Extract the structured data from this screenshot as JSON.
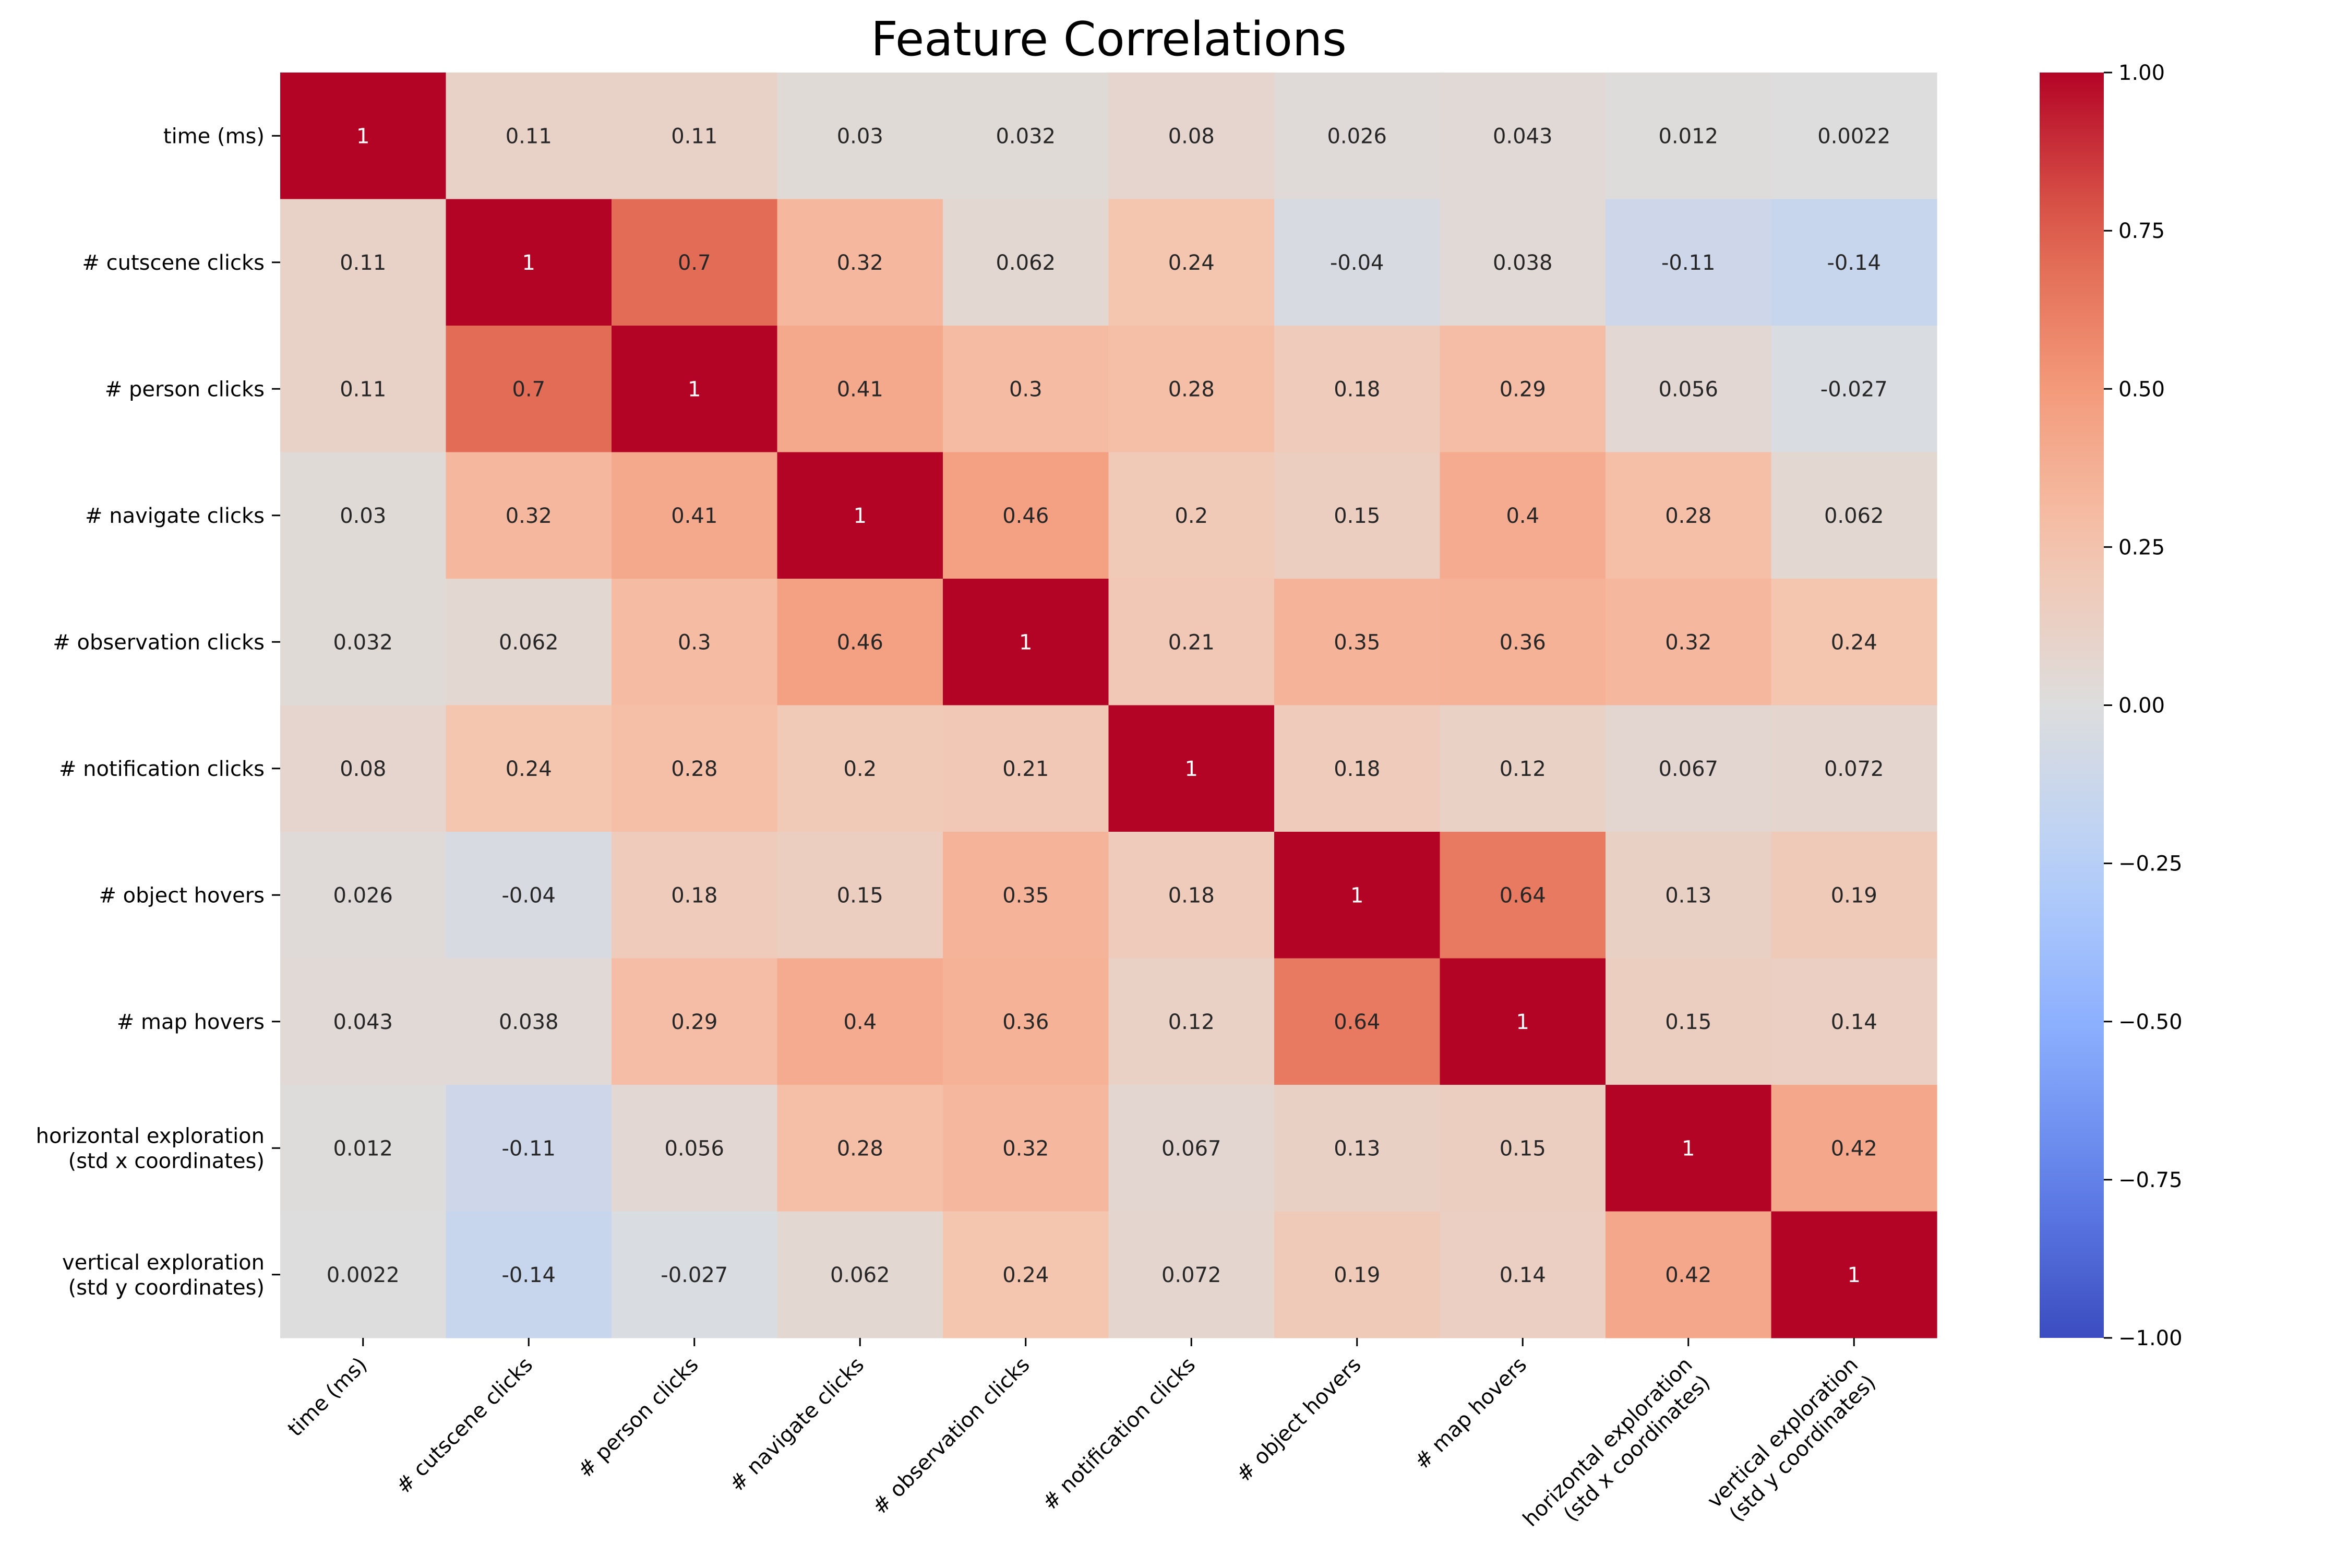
{
  "chart_data": {
    "type": "heatmap",
    "title": "Feature Correlations",
    "row_labels": [
      [
        "time (ms)"
      ],
      [
        "# cutscene clicks"
      ],
      [
        "# person clicks"
      ],
      [
        "# navigate clicks"
      ],
      [
        "# observation clicks"
      ],
      [
        "# notification clicks"
      ],
      [
        "# object hovers"
      ],
      [
        "# map hovers"
      ],
      [
        "horizontal exploration",
        "(std x coordinates)"
      ],
      [
        "vertical exploration",
        "(std y coordinates)"
      ]
    ],
    "col_labels": [
      [
        "time (ms)"
      ],
      [
        "# cutscene clicks"
      ],
      [
        "# person clicks"
      ],
      [
        "# navigate clicks"
      ],
      [
        "# observation clicks"
      ],
      [
        "# notification clicks"
      ],
      [
        "# object hovers"
      ],
      [
        "# map hovers"
      ],
      [
        "horizontal exploration",
        "(std x coordinates)"
      ],
      [
        "vertical exploration",
        "(std y coordinates)"
      ]
    ],
    "values": [
      [
        1,
        0.11,
        0.11,
        0.03,
        0.032,
        0.08,
        0.026,
        0.043,
        0.012,
        0.0022
      ],
      [
        0.11,
        1,
        0.7,
        0.32,
        0.062,
        0.24,
        -0.04,
        0.038,
        -0.11,
        -0.14
      ],
      [
        0.11,
        0.7,
        1,
        0.41,
        0.3,
        0.28,
        0.18,
        0.29,
        0.056,
        -0.027
      ],
      [
        0.03,
        0.32,
        0.41,
        1,
        0.46,
        0.2,
        0.15,
        0.4,
        0.28,
        0.062
      ],
      [
        0.032,
        0.062,
        0.3,
        0.46,
        1,
        0.21,
        0.35,
        0.36,
        0.32,
        0.24
      ],
      [
        0.08,
        0.24,
        0.28,
        0.2,
        0.21,
        1,
        0.18,
        0.12,
        0.067,
        0.072
      ],
      [
        0.026,
        -0.04,
        0.18,
        0.15,
        0.35,
        0.18,
        1,
        0.64,
        0.13,
        0.19
      ],
      [
        0.043,
        0.038,
        0.29,
        0.4,
        0.36,
        0.12,
        0.64,
        1,
        0.15,
        0.14
      ],
      [
        0.012,
        -0.11,
        0.056,
        0.28,
        0.32,
        0.067,
        0.13,
        0.15,
        1,
        0.42
      ],
      [
        0.0022,
        -0.14,
        -0.027,
        0.062,
        0.24,
        0.072,
        0.19,
        0.14,
        0.42,
        1
      ]
    ],
    "colormap": "coolwarm",
    "vmin": -1,
    "vmax": 1,
    "colorbar_ticks": [
      "1.00",
      "0.75",
      "0.50",
      "0.25",
      "0.00",
      "−0.25",
      "−0.50",
      "−0.75",
      "−1.00"
    ],
    "colorbar_tick_values": [
      1,
      0.75,
      0.5,
      0.25,
      0,
      -0.25,
      -0.5,
      -0.75,
      -1
    ],
    "colors": {
      "cold_end": "#3b4cc0",
      "neutral": "#dddddd",
      "hot_end": "#b40426"
    }
  }
}
